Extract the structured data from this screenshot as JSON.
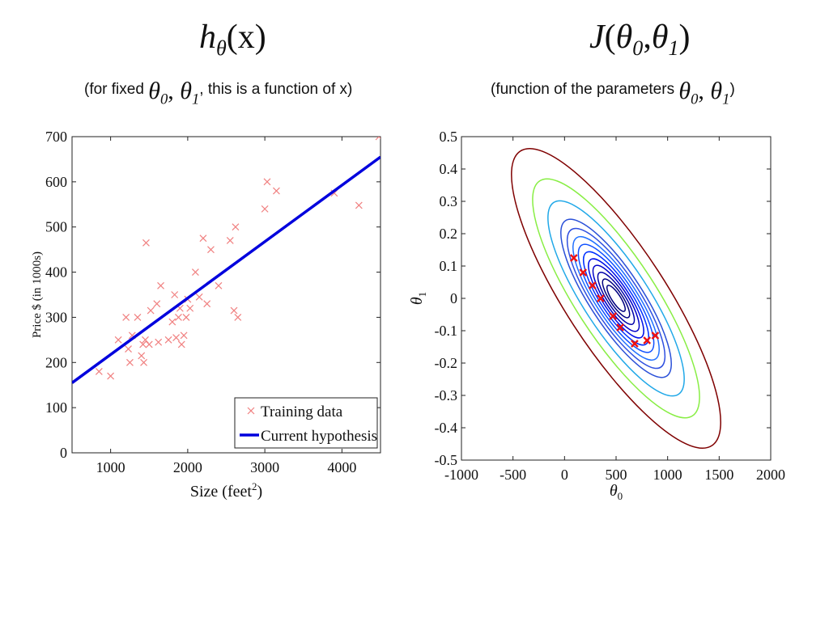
{
  "headings": {
    "left": {
      "func": "h",
      "sub": "θ",
      "arg": "(x)"
    },
    "right": {
      "func": "J",
      "open": "(",
      "p0": "θ",
      "s0": "0",
      "sep": ",",
      "p1": "θ",
      "s1": "1",
      "close": ")"
    }
  },
  "captions": {
    "left_pre": "(for fixed ",
    "left_theta0": "θ",
    "left_s0": "0",
    "left_comma": ", ",
    "left_theta1": "θ",
    "left_s1": "1",
    "left_post": ", this is a function of x)",
    "right_pre": "(function of the parameters ",
    "right_theta0": "θ",
    "right_s0": "0",
    "right_comma": ", ",
    "right_theta1": "θ",
    "right_s1": "1",
    "right_post": ")"
  },
  "chart_data": [
    {
      "type": "scatter",
      "xlabel": "Size (feet",
      "xlabel_sup": "2",
      "xlabel_close": ")",
      "ylabel": "Price $ (in 1000s)",
      "xlim": [
        500,
        4500
      ],
      "ylim": [
        0,
        700
      ],
      "xticks": [
        "1000",
        "2000",
        "3000",
        "4000"
      ],
      "yticks": [
        "0",
        "100",
        "200",
        "300",
        "400",
        "500",
        "600",
        "700"
      ],
      "grid": false,
      "legend_position": "bottom-right",
      "series": [
        {
          "name": "Training data",
          "color": "#f08080",
          "marker": "x",
          "points": [
            [
              850,
              180
            ],
            [
              1000,
              170
            ],
            [
              1100,
              250
            ],
            [
              1200,
              300
            ],
            [
              1230,
              230
            ],
            [
              1250,
              200
            ],
            [
              1280,
              260
            ],
            [
              1350,
              300
            ],
            [
              1400,
              215
            ],
            [
              1420,
              240
            ],
            [
              1430,
              200
            ],
            [
              1450,
              250
            ],
            [
              1460,
              465
            ],
            [
              1500,
              240
            ],
            [
              1520,
              315
            ],
            [
              1600,
              330
            ],
            [
              1620,
              245
            ],
            [
              1650,
              370
            ],
            [
              1750,
              250
            ],
            [
              1800,
              290
            ],
            [
              1830,
              350
            ],
            [
              1850,
              255
            ],
            [
              1880,
              300
            ],
            [
              1900,
              320
            ],
            [
              1920,
              240
            ],
            [
              1950,
              260
            ],
            [
              1980,
              300
            ],
            [
              2000,
              340
            ],
            [
              2030,
              320
            ],
            [
              2100,
              400
            ],
            [
              2150,
              345
            ],
            [
              2200,
              475
            ],
            [
              2250,
              330
            ],
            [
              2300,
              450
            ],
            [
              2400,
              370
            ],
            [
              2550,
              470
            ],
            [
              2600,
              315
            ],
            [
              2620,
              500
            ],
            [
              2650,
              300
            ],
            [
              3000,
              540
            ],
            [
              3030,
              600
            ],
            [
              3150,
              580
            ],
            [
              3900,
              575
            ],
            [
              4220,
              548
            ],
            [
              4480,
              700
            ]
          ]
        },
        {
          "name": "Current hypothesis",
          "color": "#0000dd",
          "type": "line",
          "points": [
            [
              500,
              155
            ],
            [
              4500,
              655
            ]
          ]
        }
      ]
    },
    {
      "type": "contour",
      "xlabel": "θ",
      "xlabel_sub": "0",
      "ylabel": "θ",
      "ylabel_sub": "1",
      "xlim": [
        -1000,
        2000
      ],
      "ylim": [
        -0.5,
        0.5
      ],
      "xticks": [
        "-1000",
        "-500",
        "0",
        "500",
        "1000",
        "1500",
        "2000"
      ],
      "yticks": [
        "-0.5",
        "-0.4",
        "-0.3",
        "-0.2",
        "-0.1",
        "0",
        "0.1",
        "0.2",
        "0.3",
        "0.4",
        "0.5"
      ],
      "grid": false,
      "ellipse_center": [
        500,
        0
      ],
      "contour_levels": [
        {
          "scale": 0.25,
          "color": "#00007f"
        },
        {
          "scale": 0.55,
          "color": "#00007f"
        },
        {
          "scale": 1.0,
          "color": "#0000a8"
        },
        {
          "scale": 1.6,
          "color": "#0000c8"
        },
        {
          "scale": 2.3,
          "color": "#0010e8"
        },
        {
          "scale": 3.2,
          "color": "#0030ff"
        },
        {
          "scale": 4.3,
          "color": "#1050ff"
        },
        {
          "scale": 5.6,
          "color": "#2070ff"
        },
        {
          "scale": 7.2,
          "color": "#3050e0"
        },
        {
          "scale": 9.2,
          "color": "#2a50d8"
        },
        {
          "scale": 14.0,
          "color": "#20a8e8"
        },
        {
          "scale": 21.0,
          "color": "#88ee44"
        },
        {
          "scale": 33.0,
          "color": "#7f0000"
        }
      ],
      "path_color": "#ee1111",
      "path_marker": "x",
      "path": [
        [
          90,
          0.125
        ],
        [
          180,
          0.08
        ],
        [
          270,
          0.04
        ],
        [
          350,
          0.0
        ],
        [
          470,
          -0.055
        ],
        [
          540,
          -0.09
        ],
        [
          680,
          -0.14
        ],
        [
          800,
          -0.13
        ],
        [
          880,
          -0.115
        ]
      ]
    }
  ]
}
